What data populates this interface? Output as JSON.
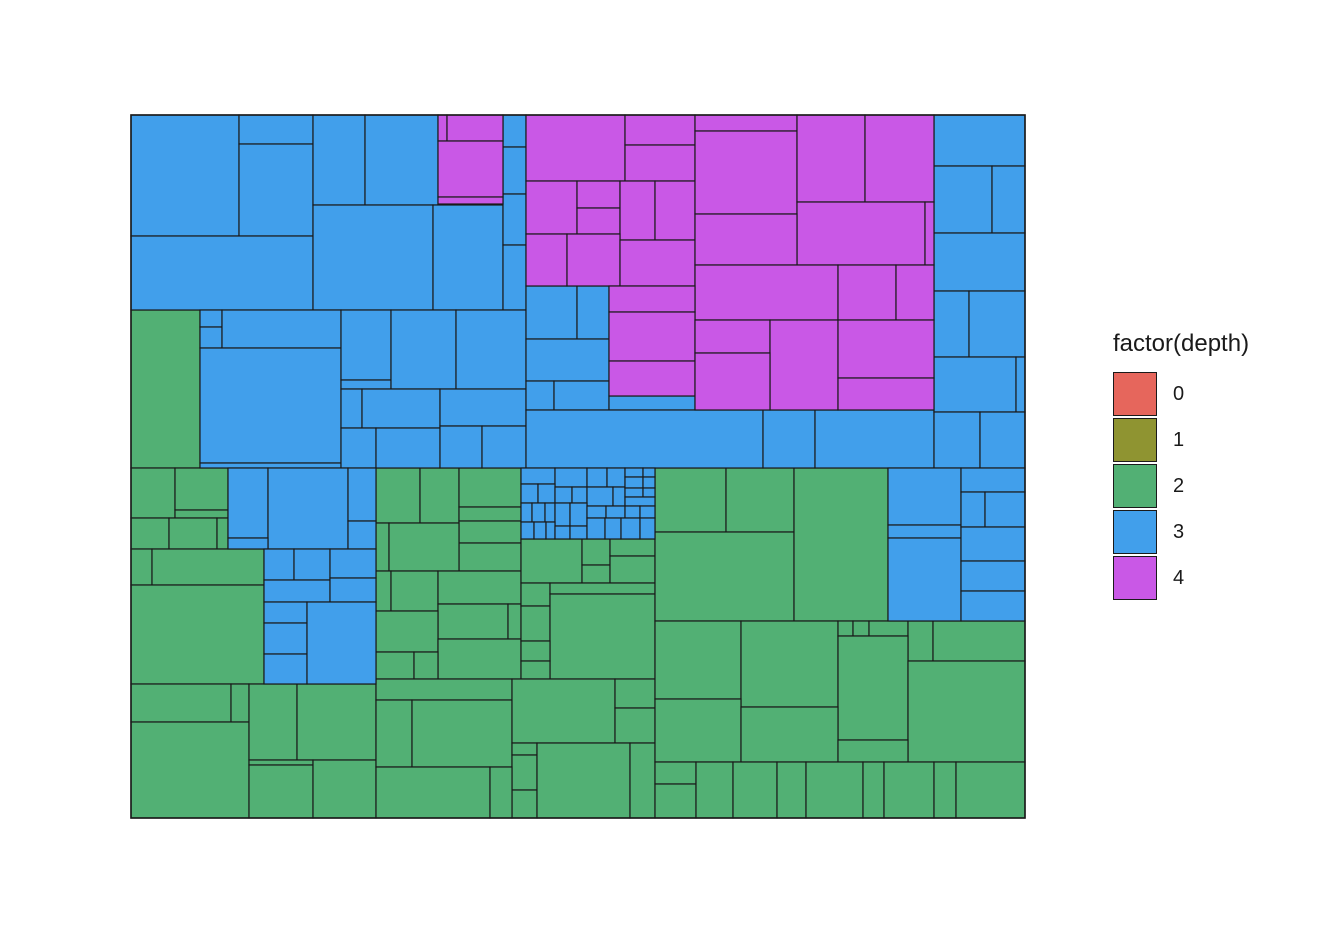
{
  "chart_data": {
    "type": "treemap",
    "title": "",
    "xlabel": "",
    "ylabel": "",
    "grid": false,
    "legend": {
      "title": "factor(depth)",
      "position": "right",
      "entries": [
        {
          "label": "0",
          "color": "#E6665C"
        },
        {
          "label": "1",
          "color": "#8F9431"
        },
        {
          "label": "2",
          "color": "#52B074"
        },
        {
          "label": "3",
          "color": "#419FEB"
        },
        {
          "label": "4",
          "color": "#C958E6"
        }
      ]
    },
    "depth_counts_visible": {
      "2": 66,
      "3": 105,
      "4": 28
    },
    "border_color": "#1a1a1a"
  }
}
